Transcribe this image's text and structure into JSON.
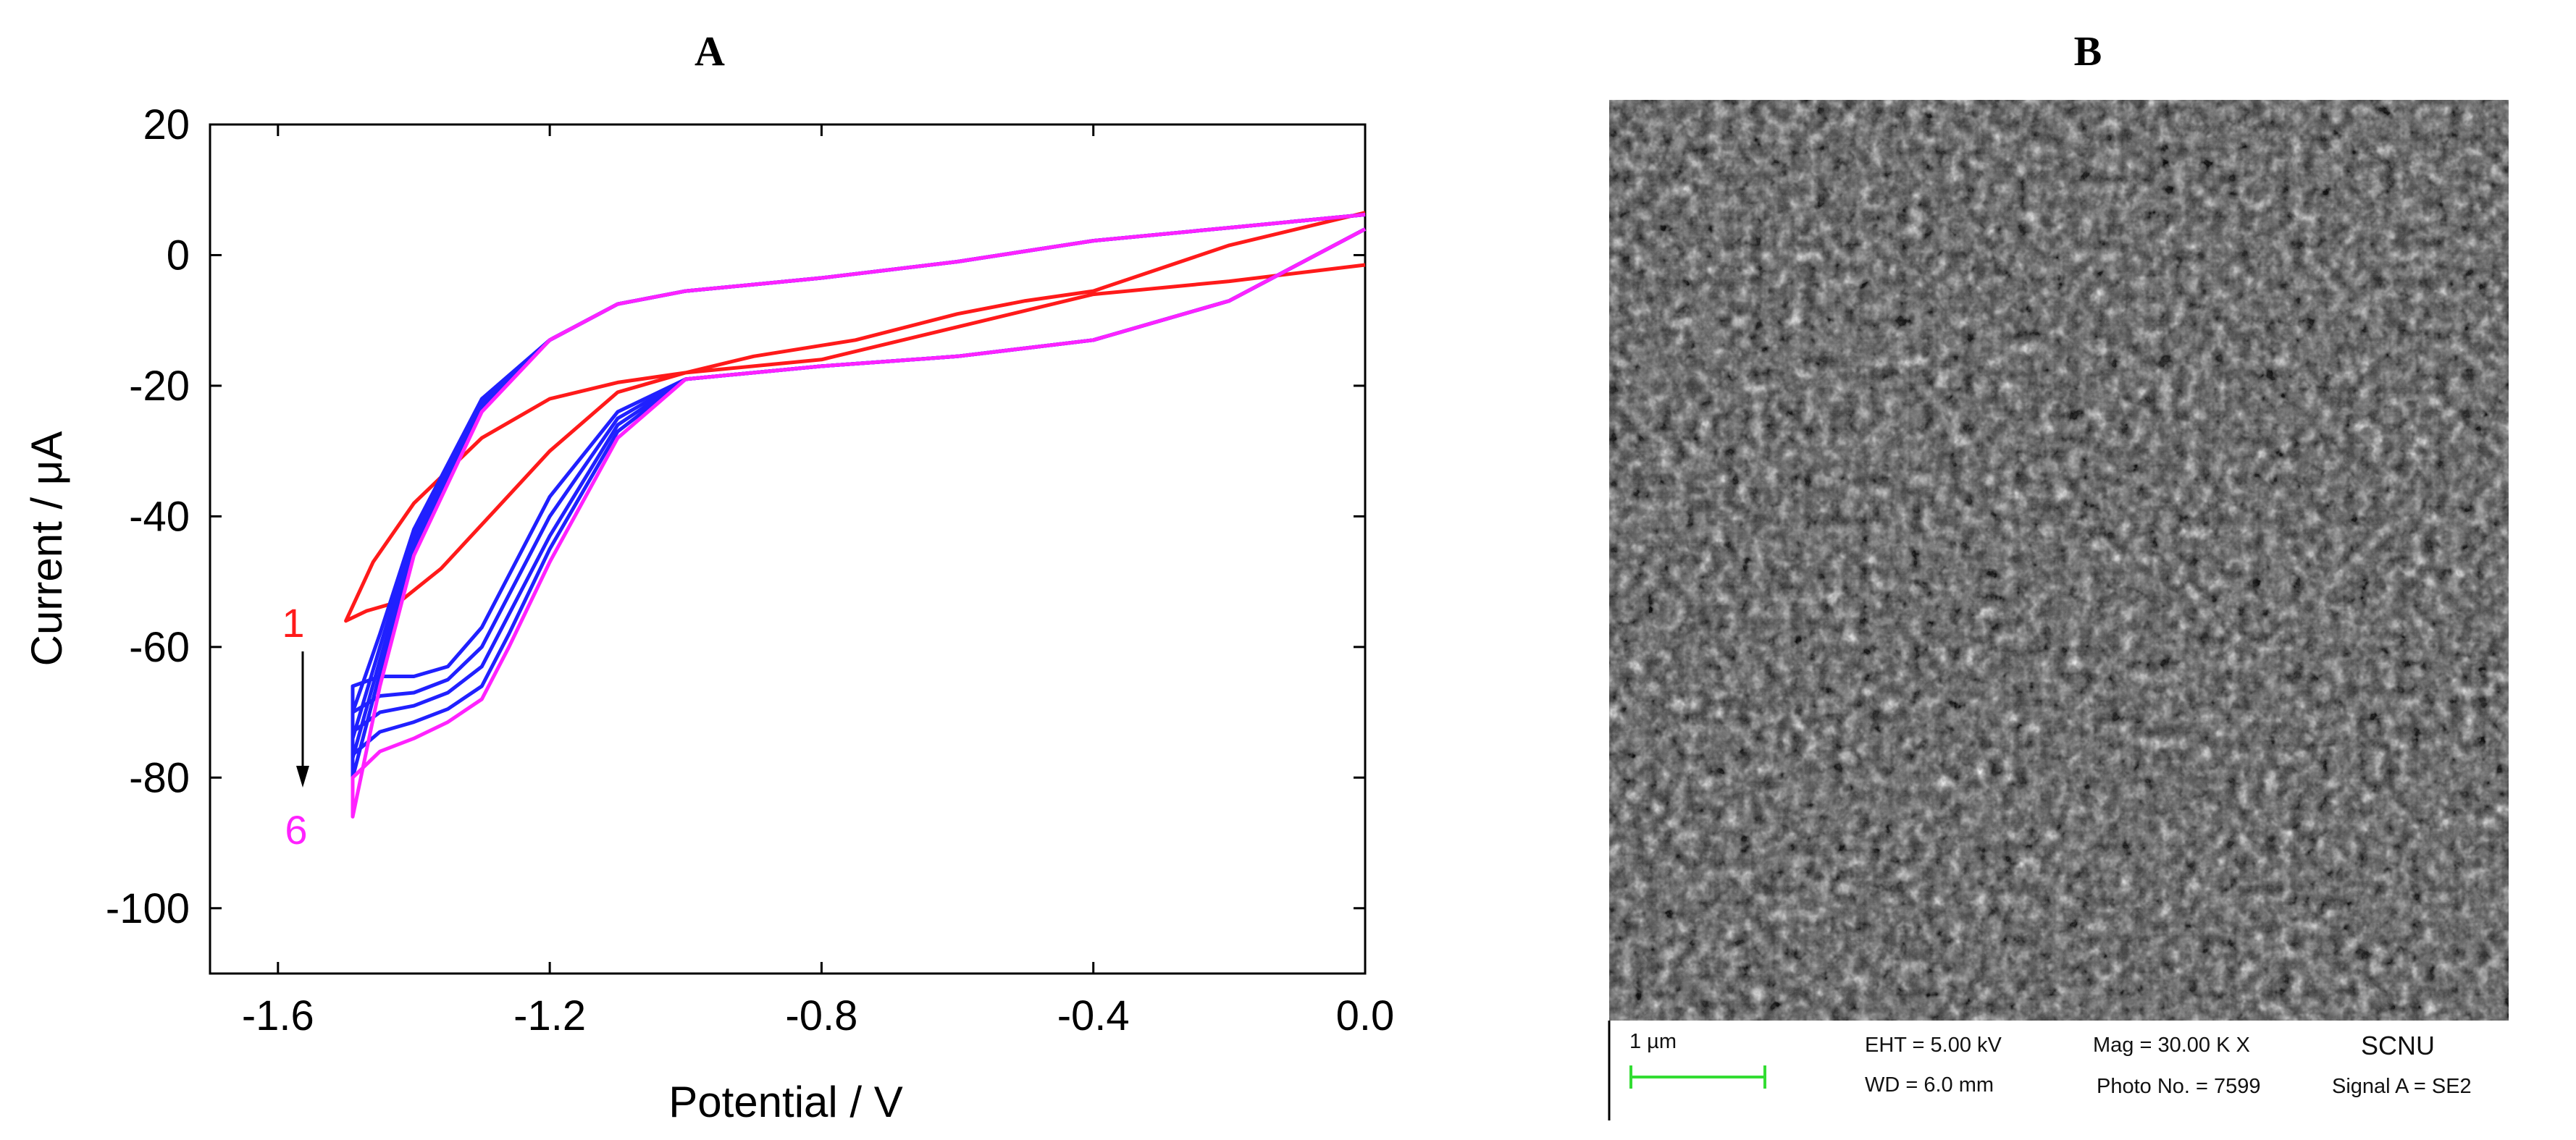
{
  "panels": {
    "a_label": "A",
    "b_label": "B"
  },
  "chart_data": {
    "type": "line",
    "title": "",
    "xlabel": "Potential / V",
    "ylabel": "Current / μA",
    "xlim": [
      -1.7,
      0.0
    ],
    "ylim": [
      -110,
      20
    ],
    "xticks": [
      -1.6,
      -1.2,
      -0.8,
      -0.4,
      0.0
    ],
    "xtick_labels": [
      "-1.6",
      "-1.2",
      "-0.8",
      "-0.4",
      "0.0"
    ],
    "yticks": [
      20,
      0,
      -20,
      -40,
      -60,
      -80,
      -100
    ],
    "ytick_labels": [
      "20",
      "0",
      "-20",
      "-40",
      "-60",
      "-80",
      "-100"
    ],
    "grid": false,
    "annotations": {
      "start_label": "1",
      "end_label": "6",
      "arrow": "downward arrow from cycle 1 to cycle 6 near -1.56 V"
    },
    "series": [
      {
        "name": "1",
        "color": "#ff1a1a",
        "x": [
          0.0,
          -0.2,
          -0.4,
          -0.6,
          -0.8,
          -1.0,
          -1.1,
          -1.2,
          -1.3,
          -1.4,
          -1.46,
          -1.5,
          -1.47,
          -1.42,
          -1.36,
          -1.28,
          -1.2,
          -1.1,
          -1.0,
          -0.9,
          -0.75,
          -0.6,
          -0.5,
          -0.4,
          -0.2,
          0.0
        ],
        "y": [
          -1.5,
          -4,
          -6,
          -11,
          -16,
          -18,
          -19.5,
          -22,
          -28,
          -38,
          -47,
          -56,
          -54.5,
          -53,
          -48,
          -39,
          -30,
          -21,
          -18,
          -15.5,
          -13,
          -9,
          -7,
          -5.5,
          1.5,
          6.5
        ]
      },
      {
        "name": "2",
        "color": "#2020ff",
        "x": [
          0.0,
          -0.2,
          -0.4,
          -0.6,
          -0.8,
          -0.9,
          -1.0,
          -1.1,
          -1.2,
          -1.26,
          -1.3,
          -1.35,
          -1.4,
          -1.45,
          -1.49,
          -1.49,
          -1.45,
          -1.4,
          -1.3,
          -1.2,
          -1.1,
          -1.0,
          -0.9,
          -0.8,
          -0.6,
          -0.4,
          -0.2,
          0.0
        ],
        "y": [
          4,
          -7,
          -13,
          -15.5,
          -17,
          -18,
          -19,
          -24,
          -37,
          -49,
          -57,
          -63,
          -64.5,
          -64.5,
          -66,
          -70,
          -58,
          -42,
          -22,
          -13,
          -7.5,
          -5.5,
          -4.5,
          -3.5,
          -1,
          2.2,
          4.2,
          6.2
        ]
      },
      {
        "name": "3",
        "color": "#2020ff",
        "x": [
          0.0,
          -0.2,
          -0.4,
          -0.6,
          -0.8,
          -0.9,
          -1.0,
          -1.1,
          -1.2,
          -1.26,
          -1.3,
          -1.35,
          -1.4,
          -1.45,
          -1.49,
          -1.49,
          -1.45,
          -1.4,
          -1.3,
          -1.2,
          -1.1,
          -1.0,
          -0.9,
          -0.8,
          -0.6,
          -0.4,
          -0.2,
          0.0
        ],
        "y": [
          4,
          -7,
          -13,
          -15.5,
          -17,
          -18,
          -19,
          -25,
          -40,
          -52,
          -60,
          -65,
          -67,
          -67.5,
          -70,
          -74,
          -60,
          -43,
          -22.5,
          -13,
          -7.5,
          -5.5,
          -4.5,
          -3.5,
          -1,
          2.2,
          4.2,
          6.2
        ]
      },
      {
        "name": "4",
        "color": "#2020ff",
        "x": [
          0.0,
          -0.2,
          -0.4,
          -0.6,
          -0.8,
          -0.9,
          -1.0,
          -1.1,
          -1.2,
          -1.26,
          -1.3,
          -1.35,
          -1.4,
          -1.45,
          -1.49,
          -1.49,
          -1.45,
          -1.4,
          -1.3,
          -1.2,
          -1.1,
          -1.0,
          -0.9,
          -0.8,
          -0.6,
          -0.4,
          -0.2,
          0.0
        ],
        "y": [
          4,
          -7,
          -13,
          -15.5,
          -17,
          -18,
          -19,
          -26,
          -43,
          -55,
          -63,
          -67,
          -69,
          -70,
          -73,
          -77,
          -62,
          -44,
          -23,
          -13,
          -7.5,
          -5.5,
          -4.5,
          -3.5,
          -1,
          2.2,
          4.2,
          6.2
        ]
      },
      {
        "name": "5",
        "color": "#2020ff",
        "x": [
          0.0,
          -0.2,
          -0.4,
          -0.6,
          -0.8,
          -0.9,
          -1.0,
          -1.1,
          -1.2,
          -1.26,
          -1.3,
          -1.35,
          -1.4,
          -1.45,
          -1.49,
          -1.49,
          -1.45,
          -1.4,
          -1.3,
          -1.2,
          -1.1,
          -1.0,
          -0.9,
          -0.8,
          -0.6,
          -0.4,
          -0.2,
          0.0
        ],
        "y": [
          4,
          -7,
          -13,
          -15.5,
          -17,
          -18,
          -19,
          -27,
          -45,
          -58,
          -66,
          -69.5,
          -71.5,
          -73,
          -76.5,
          -80,
          -64,
          -45,
          -23.5,
          -13,
          -7.5,
          -5.5,
          -4.5,
          -3.5,
          -1,
          2.2,
          4.2,
          6.2
        ]
      },
      {
        "name": "6",
        "color": "#ff22ff",
        "x": [
          0.0,
          -0.2,
          -0.4,
          -0.6,
          -0.8,
          -0.9,
          -1.0,
          -1.1,
          -1.2,
          -1.26,
          -1.3,
          -1.35,
          -1.4,
          -1.45,
          -1.49,
          -1.49,
          -1.45,
          -1.4,
          -1.3,
          -1.2,
          -1.1,
          -1.0,
          -0.9,
          -0.8,
          -0.6,
          -0.4,
          -0.2,
          0.0
        ],
        "y": [
          4,
          -7,
          -13,
          -15.5,
          -17,
          -18,
          -19,
          -28,
          -47,
          -60,
          -68,
          -71.5,
          -74,
          -76,
          -80,
          -86,
          -66,
          -46,
          -24,
          -13,
          -7.5,
          -5.5,
          -4.5,
          -3.5,
          -1,
          2.2,
          4.2,
          6.2
        ]
      }
    ]
  },
  "sem": {
    "scale_bar_label": "1 µm",
    "eht": "EHT =  5.00 kV",
    "wd": "WD =  6.0 mm",
    "mag": "Mag =  30.00 K X",
    "photo_no": "Photo No. = 7599",
    "institution": "SCNU",
    "signal": "Signal A = SE2",
    "scale_bar_color": "#33dd33"
  }
}
